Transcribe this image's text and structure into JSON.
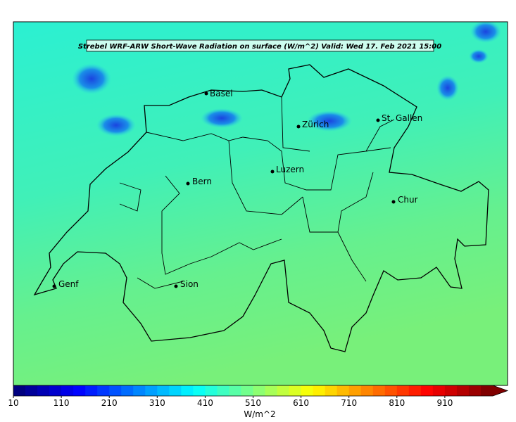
{
  "title": "Strebel WRF-ARW Short-Wave Radiation on surface (W/m^2)   Valid: Wed 17. Feb 2021 15:00",
  "cities": [
    "Basel",
    "Zürich",
    "St. Gallen",
    "Luzern",
    "Bern",
    "Chur",
    "Genf",
    "Sion"
  ],
  "colorbar": {
    "label": "W/m^2",
    "lim": [
      10,
      1010
    ],
    "ticks": [
      10,
      110,
      210,
      310,
      410,
      510,
      610,
      710,
      810,
      910
    ]
  }
}
